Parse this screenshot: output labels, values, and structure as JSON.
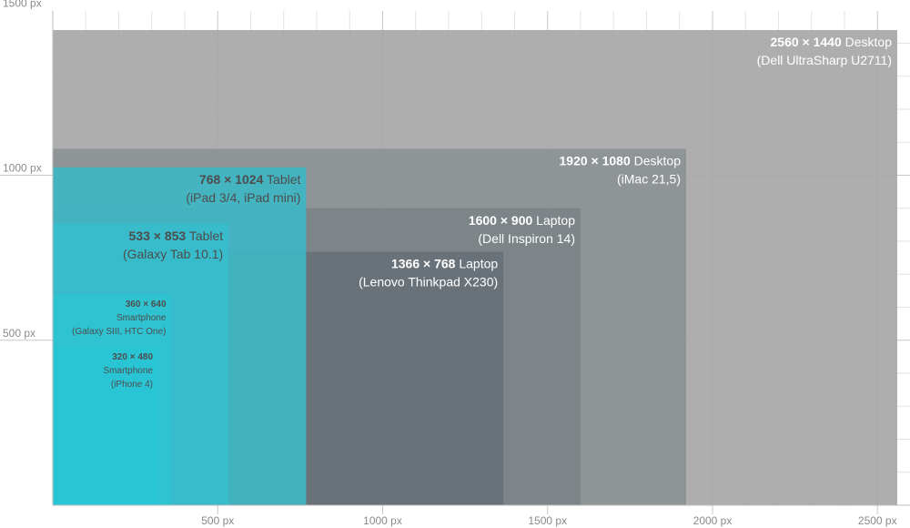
{
  "chart_data": {
    "type": "bar",
    "title": "",
    "xlabel": "",
    "ylabel": "",
    "xlim": [
      0,
      2560
    ],
    "ylim": [
      0,
      1500
    ],
    "grid": true,
    "x_ticks": [
      {
        "value": 500,
        "label": "500 px"
      },
      {
        "value": 1000,
        "label": "1000 px"
      },
      {
        "value": 1500,
        "label": "1500 px"
      },
      {
        "value": 2000,
        "label": "2000 px"
      },
      {
        "value": 2500,
        "label": "2500 px"
      }
    ],
    "y_ticks": [
      {
        "value": 500,
        "label": "500 px"
      },
      {
        "value": 1000,
        "label": "1000 px"
      },
      {
        "value": 1500,
        "label": "1500 px"
      }
    ],
    "screens": [
      {
        "key": "desktop-2560",
        "width": 2560,
        "height": 1440,
        "dims": "2560 × 1440",
        "kind": "Desktop",
        "model": "(Dell UltraSharp U2711)",
        "color": "#a7a7a7",
        "text_color": "#ffffff",
        "dim_color": "#ffffff",
        "compact": false
      },
      {
        "key": "desktop-1920",
        "width": 1920,
        "height": 1080,
        "dims": "1920 × 1080",
        "kind": "Desktop",
        "model": "(iMac 21,5)",
        "color": "#8c9194",
        "text_color": "#ffffff",
        "dim_color": "#ffffff",
        "compact": false
      },
      {
        "key": "laptop-1600",
        "width": 1600,
        "height": 900,
        "dims": "1600 × 900",
        "kind": "Laptop",
        "model": "(Dell Inspiron 14)",
        "color": "#7c8387",
        "text_color": "#ffffff",
        "dim_color": "#ffffff",
        "compact": false
      },
      {
        "key": "laptop-1366",
        "width": 1366,
        "height": 768,
        "dims": "1366 × 768",
        "kind": "Laptop",
        "model": "(Lenovo Thinkpad X230)",
        "color": "#687177",
        "text_color": "#ffffff",
        "dim_color": "#ffffff",
        "compact": false
      },
      {
        "key": "tablet-768",
        "width": 768,
        "height": 1024,
        "dims": "768 × 1024",
        "kind": "Tablet",
        "model": "(iPad 3/4, iPad mini)",
        "color": "#3fb6c4",
        "text_color": "#4d4d4d",
        "dim_color": "#4d4d4d",
        "compact": false
      },
      {
        "key": "tablet-533",
        "width": 533,
        "height": 853,
        "dims": "533 × 853",
        "kind": "Tablet",
        "model": "(Galaxy Tab 10.1)",
        "color": "#37bdcc",
        "text_color": "#4d4d4d",
        "dim_color": "#4d4d4d",
        "compact": false
      },
      {
        "key": "phone-360",
        "width": 360,
        "height": 640,
        "dims": "360 × 640",
        "kind": "Smartphone",
        "model": "(Galaxy SIII, HTC One)",
        "color": "#2fc3d2",
        "text_color": "#4d4d4d",
        "dim_color": "#4d4d4d",
        "compact": true
      },
      {
        "key": "phone-320",
        "width": 320,
        "height": 480,
        "dims": "320 × 480",
        "kind": "Smartphone",
        "model": "(iPhone 4)",
        "color": "#2ac6d5",
        "text_color": "#4d4d4d",
        "dim_color": "#4d4d4d",
        "compact": true
      }
    ]
  }
}
